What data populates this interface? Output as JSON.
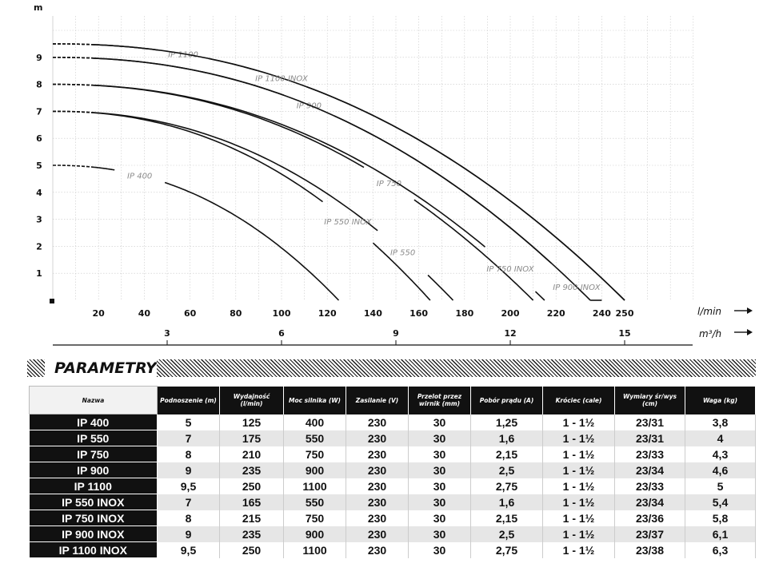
{
  "chart_data": {
    "type": "line",
    "y_unit": "m",
    "x_unit_primary": "l/min",
    "x_unit_secondary": "m³/h",
    "xlim": [
      0,
      290
    ],
    "ylim": [
      0,
      10
    ],
    "x_ticks": [
      "20",
      "40",
      "60",
      "80",
      "100",
      "120",
      "140",
      "160",
      "180",
      "200",
      "220",
      "240",
      "250"
    ],
    "y_ticks": [
      "1",
      "2",
      "3",
      "4",
      "5",
      "6",
      "7",
      "8",
      "9"
    ],
    "m3h_ticks": [
      "3",
      "6",
      "9",
      "12",
      "15"
    ],
    "grid": true,
    "series": [
      {
        "name": "IP 400",
        "max_head": 5,
        "max_flow": 125
      },
      {
        "name": "IP 550",
        "max_head": 7,
        "max_flow": 175
      },
      {
        "name": "IP 550 INOX",
        "max_head": 7,
        "max_flow": 165
      },
      {
        "name": "IP 750",
        "max_head": 8,
        "max_flow": 210
      },
      {
        "name": "IP 750 INOX",
        "max_head": 8,
        "max_flow": 215
      },
      {
        "name": "IP 900",
        "max_head": 9,
        "max_flow": 235
      },
      {
        "name": "IP 900 INOX",
        "max_head": 9,
        "max_flow": 235
      },
      {
        "name": "IP 1100",
        "max_head": 9.5,
        "max_flow": 250
      },
      {
        "name": "IP 1100 INOX",
        "max_head": 9.5,
        "max_flow": 250
      }
    ]
  },
  "section_title": "PARAMETRY",
  "table": {
    "headers": [
      "Nazwa",
      "Podnoszenie (m)",
      "Wydajność (l/min)",
      "Moc silnika (W)",
      "Zasilanie (V)",
      "Przelot przez wirnik (mm)",
      "Pobór prądu (A)",
      "Króciec (cale)",
      "Wymiary śr/wys (cm)",
      "Waga (kg)"
    ],
    "rows": [
      [
        "IP 400",
        "5",
        "125",
        "400",
        "230",
        "30",
        "1,25",
        "1 - 1½",
        "23/31",
        "3,8"
      ],
      [
        "IP 550",
        "7",
        "175",
        "550",
        "230",
        "30",
        "1,6",
        "1 - 1½",
        "23/31",
        "4"
      ],
      [
        "IP 750",
        "8",
        "210",
        "750",
        "230",
        "30",
        "2,15",
        "1 - 1½",
        "23/33",
        "4,3"
      ],
      [
        "IP 900",
        "9",
        "235",
        "900",
        "230",
        "30",
        "2,5",
        "1 - 1½",
        "23/34",
        "4,6"
      ],
      [
        "IP 1100",
        "9,5",
        "250",
        "1100",
        "230",
        "30",
        "2,75",
        "1 - 1½",
        "23/33",
        "5"
      ],
      [
        "IP 550 INOX",
        "7",
        "165",
        "550",
        "230",
        "30",
        "1,6",
        "1 - 1½",
        "23/34",
        "5,4"
      ],
      [
        "IP 750 INOX",
        "8",
        "215",
        "750",
        "230",
        "30",
        "2,15",
        "1 - 1½",
        "23/36",
        "5,8"
      ],
      [
        "IP 900 INOX",
        "9",
        "235",
        "900",
        "230",
        "30",
        "2,5",
        "1 - 1½",
        "23/37",
        "6,1"
      ],
      [
        "IP 1100 INOX",
        "9,5",
        "250",
        "1100",
        "230",
        "30",
        "2,75",
        "1 - 1½",
        "23/38",
        "6,3"
      ]
    ]
  }
}
